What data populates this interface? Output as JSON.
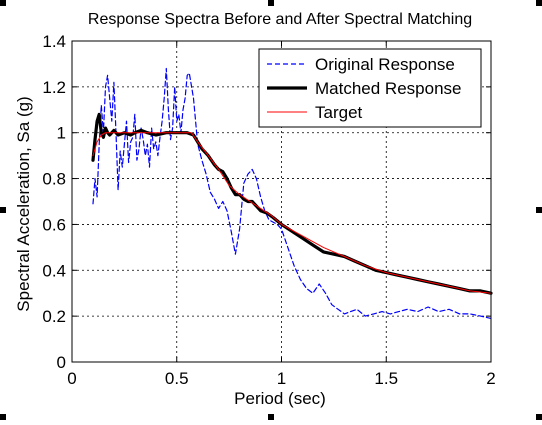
{
  "chart_data": {
    "type": "line",
    "title": "Response Spectra Before and After Spectral Matching",
    "xlabel": "Period (sec)",
    "ylabel": "Spectral Acceleration, Sa (g)",
    "xlim": [
      0,
      2
    ],
    "ylim": [
      0,
      1.4
    ],
    "xticks": [
      0,
      0.5,
      1,
      1.5,
      2
    ],
    "xtick_labels": [
      "0",
      "0.5",
      "1",
      "1.5",
      "2"
    ],
    "yticks": [
      0,
      0.2,
      0.4,
      0.6,
      0.8,
      1,
      1.2,
      1.4
    ],
    "ytick_labels": [
      "0",
      "0.2",
      "0.4",
      "0.6",
      "0.8",
      "1",
      "1.2",
      "1.4"
    ],
    "grid": true,
    "legend_position": "top-right",
    "series": [
      {
        "name": "Original Response",
        "color": "#0000ff",
        "style": "dashed",
        "width": 1.2,
        "x": [
          0.1,
          0.11,
          0.12,
          0.13,
          0.14,
          0.15,
          0.16,
          0.17,
          0.18,
          0.19,
          0.2,
          0.21,
          0.22,
          0.23,
          0.24,
          0.25,
          0.26,
          0.27,
          0.28,
          0.29,
          0.3,
          0.31,
          0.32,
          0.33,
          0.34,
          0.35,
          0.36,
          0.37,
          0.38,
          0.39,
          0.4,
          0.41,
          0.42,
          0.43,
          0.44,
          0.45,
          0.46,
          0.47,
          0.48,
          0.49,
          0.5,
          0.51,
          0.52,
          0.53,
          0.54,
          0.55,
          0.56,
          0.58,
          0.6,
          0.62,
          0.64,
          0.66,
          0.68,
          0.7,
          0.72,
          0.74,
          0.76,
          0.78,
          0.8,
          0.82,
          0.84,
          0.86,
          0.88,
          0.9,
          0.92,
          0.94,
          0.96,
          0.98,
          1.0,
          1.03,
          1.06,
          1.09,
          1.12,
          1.15,
          1.18,
          1.21,
          1.24,
          1.27,
          1.3,
          1.33,
          1.36,
          1.4,
          1.44,
          1.48,
          1.52,
          1.56,
          1.6,
          1.65,
          1.7,
          1.75,
          1.8,
          1.85,
          1.9,
          1.95,
          2.0
        ],
        "y": [
          0.69,
          0.8,
          0.72,
          0.95,
          1.12,
          1.0,
          1.2,
          1.25,
          1.15,
          1.05,
          1.22,
          1.0,
          0.75,
          0.92,
          0.85,
          0.95,
          1.05,
          0.87,
          0.96,
          0.98,
          1.08,
          0.88,
          0.93,
          1.02,
          0.97,
          0.9,
          0.95,
          0.85,
          1.02,
          0.93,
          0.96,
          0.9,
          0.98,
          1.05,
          1.15,
          1.28,
          1.1,
          0.97,
          1.02,
          1.2,
          1.05,
          1.08,
          1.0,
          1.1,
          1.15,
          1.25,
          1.26,
          1.15,
          0.95,
          0.88,
          0.82,
          0.74,
          0.71,
          0.67,
          0.7,
          0.66,
          0.57,
          0.47,
          0.58,
          0.78,
          0.82,
          0.84,
          0.8,
          0.72,
          0.66,
          0.62,
          0.61,
          0.6,
          0.58,
          0.5,
          0.42,
          0.36,
          0.32,
          0.3,
          0.34,
          0.3,
          0.25,
          0.23,
          0.21,
          0.22,
          0.23,
          0.2,
          0.21,
          0.22,
          0.21,
          0.22,
          0.23,
          0.22,
          0.24,
          0.22,
          0.23,
          0.21,
          0.21,
          0.2,
          0.19
        ]
      },
      {
        "name": "Matched Response",
        "color": "#000000",
        "style": "solid",
        "width": 3.2,
        "x": [
          0.1,
          0.11,
          0.12,
          0.13,
          0.14,
          0.15,
          0.16,
          0.17,
          0.18,
          0.2,
          0.22,
          0.25,
          0.28,
          0.3,
          0.33,
          0.36,
          0.4,
          0.45,
          0.5,
          0.55,
          0.58,
          0.6,
          0.62,
          0.65,
          0.68,
          0.7,
          0.72,
          0.74,
          0.76,
          0.78,
          0.8,
          0.82,
          0.84,
          0.86,
          0.88,
          0.9,
          0.93,
          0.96,
          1.0,
          1.05,
          1.1,
          1.15,
          1.2,
          1.25,
          1.3,
          1.35,
          1.4,
          1.45,
          1.5,
          1.55,
          1.6,
          1.65,
          1.7,
          1.75,
          1.8,
          1.85,
          1.9,
          1.95,
          2.0
        ],
        "y": [
          0.88,
          0.97,
          1.05,
          1.08,
          1.0,
          0.98,
          1.02,
          1.0,
          0.99,
          1.01,
          0.99,
          1.0,
          0.99,
          1.0,
          1.01,
          1.0,
          0.99,
          1.0,
          1.0,
          1.0,
          0.99,
          0.96,
          0.93,
          0.9,
          0.86,
          0.84,
          0.83,
          0.8,
          0.76,
          0.73,
          0.73,
          0.71,
          0.7,
          0.7,
          0.68,
          0.66,
          0.65,
          0.63,
          0.6,
          0.57,
          0.54,
          0.51,
          0.48,
          0.47,
          0.46,
          0.44,
          0.42,
          0.4,
          0.39,
          0.38,
          0.37,
          0.36,
          0.35,
          0.34,
          0.33,
          0.32,
          0.31,
          0.31,
          0.3
        ]
      },
      {
        "name": "Target",
        "color": "#ff0000",
        "style": "solid",
        "width": 1.0,
        "x": [
          0.1,
          0.12,
          0.14,
          0.16,
          0.18,
          0.2,
          0.25,
          0.3,
          0.4,
          0.5,
          0.57,
          0.6,
          0.65,
          0.7,
          0.75,
          0.8,
          0.85,
          0.9,
          0.95,
          1.0,
          1.1,
          1.2,
          1.3,
          1.4,
          1.5,
          1.6,
          1.7,
          1.8,
          1.9,
          2.0
        ],
        "y": [
          0.9,
          0.96,
          0.99,
          1.0,
          1.0,
          1.0,
          1.0,
          1.0,
          1.0,
          1.0,
          1.0,
          0.96,
          0.9,
          0.84,
          0.77,
          0.73,
          0.7,
          0.67,
          0.64,
          0.6,
          0.55,
          0.5,
          0.46,
          0.42,
          0.39,
          0.37,
          0.35,
          0.33,
          0.31,
          0.3
        ]
      }
    ]
  }
}
